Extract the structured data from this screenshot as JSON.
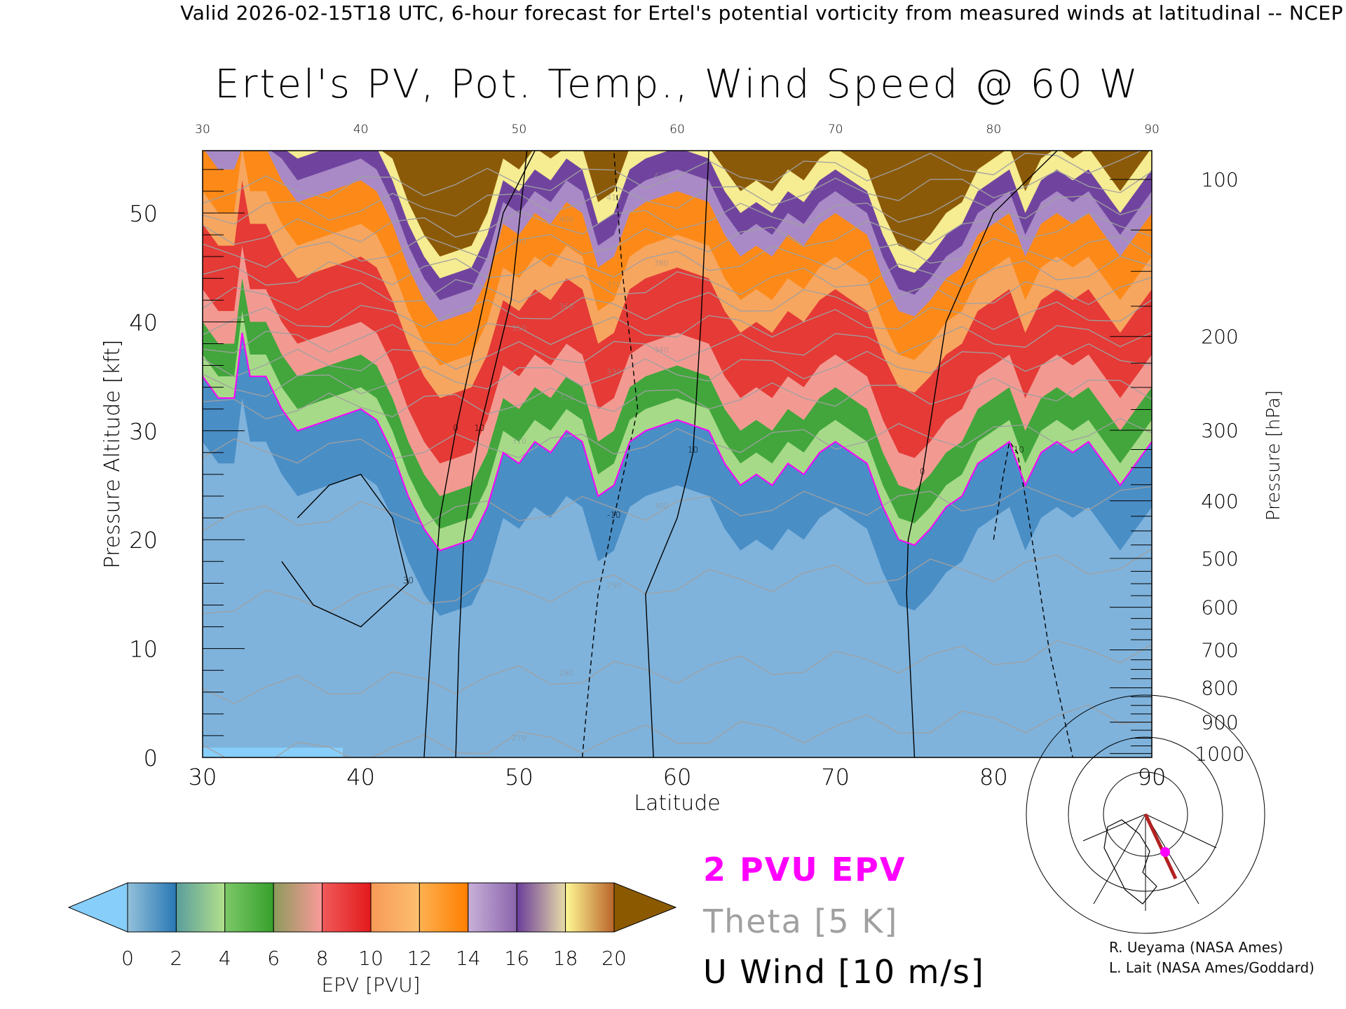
{
  "header": {
    "top_title": "Valid 2026-02-15T18 UTC, 6-hour forecast for Ertel's potential vorticity from measured winds at latitudinal -- NCEP",
    "main_title": "Ertel's PV, Pot. Temp., Wind Speed @ 60 W"
  },
  "legend": {
    "pv_label": "2 PVU EPV",
    "theta_label": "Theta [5 K]",
    "wind_label": "U Wind [10 m/s]",
    "colors": {
      "pv": "#ff00ff",
      "theta": "#a0a0a0",
      "wind": "#000000"
    }
  },
  "credits": [
    "R. Ueyama (NASA Ames)",
    "L. Lait (NASA Ames/Goddard)"
  ],
  "chart_data": {
    "type": "heatmap",
    "title": "Ertel's PV, Pot. Temp., Wind Speed @ 60 W",
    "xlabel": "Latitude",
    "ylabel_left": "Pressure Altitude [kft]",
    "ylabel_right": "Pressure [hPa]",
    "xlim": [
      30,
      90
    ],
    "ylim": [
      0,
      55.7
    ],
    "x_ticks": [
      "30",
      "40",
      "50",
      "60",
      "70",
      "80",
      "90"
    ],
    "y_ticks_kft": [
      "0",
      "10",
      "20",
      "30",
      "40",
      "50"
    ],
    "y_ticks_hpa": [
      "100",
      "200",
      "300",
      "400",
      "500",
      "600",
      "700",
      "800",
      "900",
      "1000"
    ],
    "colorbar": {
      "label": "EPV [PVU]",
      "ticks": [
        "0",
        "2",
        "4",
        "6",
        "8",
        "10",
        "12",
        "14",
        "16",
        "18",
        "20"
      ],
      "under_color": "#87cefa",
      "over_color": "#8b5a00",
      "segments": [
        [
          "#93c0da",
          "#2878b4"
        ],
        [
          "#5a9e9c",
          "#b3e08c"
        ],
        [
          "#7cc868",
          "#36a02c"
        ],
        [
          "#8c9a5c",
          "#fb9a99"
        ],
        [
          "#f05a5a",
          "#e31a1c"
        ],
        [
          "#f79a58",
          "#fdbf6f"
        ],
        [
          "#fdb050",
          "#ff7f00"
        ],
        [
          "#c8b0d8",
          "#8a64ac"
        ],
        [
          "#6a3d9a",
          "#e8dca8"
        ],
        [
          "#fff894",
          "#b8642a"
        ]
      ]
    },
    "pv_2pvu_line": {
      "lat": [
        30,
        31,
        32,
        32.5,
        33,
        34,
        35,
        36,
        38,
        40,
        41,
        42,
        43,
        44,
        45,
        47,
        48,
        49,
        50,
        51,
        52,
        53,
        54,
        55,
        56,
        57,
        58,
        60,
        62,
        63,
        64,
        65,
        66,
        67,
        68,
        69,
        70,
        71,
        72,
        73,
        74,
        75,
        76,
        77,
        78,
        79,
        80,
        81,
        82,
        83,
        84,
        85,
        86,
        87,
        88,
        90
      ],
      "kft": [
        35,
        33,
        33,
        39,
        35,
        35,
        32,
        30,
        31,
        32,
        31,
        28,
        24,
        21,
        19,
        20,
        23,
        28,
        27,
        29,
        28,
        30,
        29,
        24,
        25,
        29,
        30,
        31,
        30,
        27,
        25,
        26,
        25,
        27,
        26,
        28,
        29,
        28,
        27,
        23,
        20,
        19.5,
        21,
        23,
        24,
        27,
        28,
        29,
        25,
        28,
        29,
        28,
        29,
        27,
        25,
        29
      ]
    },
    "pv_bands": [
      {
        "offset_kft": -6,
        "color": "#4a8ec6"
      },
      {
        "offset_kft": 0,
        "color": "#a6da88"
      },
      {
        "offset_kft": 2,
        "color": "#42a63c"
      },
      {
        "offset_kft": 5,
        "color": "#f29a92"
      },
      {
        "offset_kft": 8,
        "color": "#e53a36"
      },
      {
        "offset_kft": 14,
        "color": "#f7a660"
      },
      {
        "offset_kft": 17,
        "color": "#fd8a18"
      },
      {
        "offset_kft": 21,
        "color": "#a98ac6"
      },
      {
        "offset_kft": 23,
        "color": "#70449e"
      },
      {
        "offset_kft": 25,
        "color": "#f6ec92"
      },
      {
        "offset_kft": 27,
        "color": "#8b5a08"
      }
    ],
    "theta_levels": {
      "values": [
        270,
        280,
        290,
        300,
        310,
        320,
        330,
        340,
        350,
        360,
        370,
        380,
        390,
        400,
        410,
        420
      ],
      "kft_at_30": [
        0,
        6,
        14,
        22,
        28,
        32,
        34,
        36,
        38,
        40,
        42,
        44,
        46,
        48,
        50,
        52
      ],
      "kft_at_90": [
        4,
        10,
        18,
        24,
        30,
        34,
        37,
        39,
        41,
        43,
        45,
        47,
        49,
        51,
        53,
        55
      ]
    },
    "wind_contours": [
      {
        "label": "0",
        "lat": [
          44,
          44.5,
          45,
          46,
          47.5,
          49,
          51
        ],
        "kft": [
          0,
          12,
          22,
          30,
          40,
          50,
          55.7
        ]
      },
      {
        "label": "10",
        "lat": [
          46,
          46.2,
          46.5,
          47.5,
          49.5,
          50.5
        ],
        "kft": [
          0,
          10,
          20,
          30,
          42,
          55.7
        ]
      },
      {
        "label": "-10",
        "lat": [
          54,
          54.5,
          55,
          56,
          57.5,
          56.5,
          56
        ],
        "kft": [
          0,
          8,
          15,
          22,
          32,
          45,
          55.7
        ]
      },
      {
        "label": "10",
        "lat": [
          58.5,
          58,
          60,
          61,
          61.5,
          62
        ],
        "kft": [
          0,
          15,
          22,
          28,
          40,
          55.7
        ]
      },
      {
        "label": "0",
        "lat": [
          75,
          74.5,
          74.6,
          75.5,
          77,
          80,
          84
        ],
        "kft": [
          0,
          15,
          20,
          26,
          40,
          50,
          55.7
        ]
      },
      {
        "label": "-10",
        "lat": [
          80,
          80.5,
          81,
          81.5,
          82,
          83.5,
          85
        ],
        "kft": [
          20,
          25,
          29,
          28,
          24,
          10,
          0
        ]
      },
      {
        "label": "30",
        "lat": [
          36,
          38,
          40,
          42,
          43,
          40,
          37,
          35
        ],
        "kft": [
          22,
          25,
          26,
          22,
          16,
          12,
          14,
          18
        ]
      }
    ]
  }
}
